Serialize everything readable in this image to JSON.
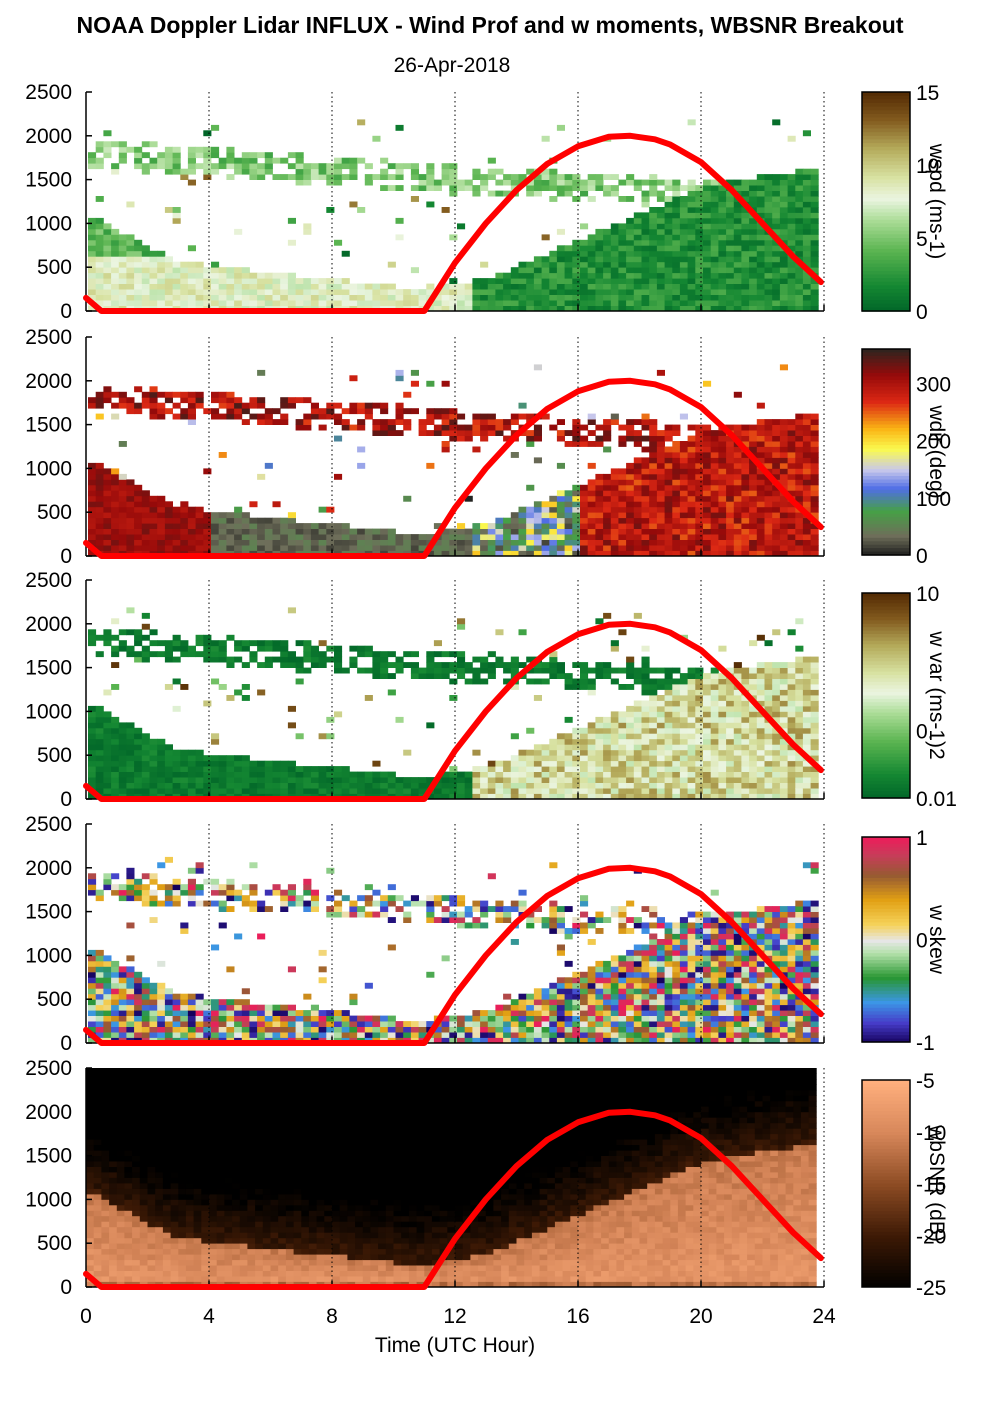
{
  "title": "NOAA Doppler Lidar INFLUX - Wind Prof and w moments, WBSNR Breakout",
  "subtitle": "26-Apr-2018",
  "x_axis": {
    "label": "Time (UTC Hour)",
    "ticks": [
      "0",
      "4",
      "8",
      "12",
      "16",
      "20",
      "24"
    ]
  },
  "colors": {
    "sun_curve": "#ff0000",
    "green_dark": "#006f2e",
    "red_dark": "#8b0d0d",
    "brown_dark": "#5a3510",
    "snr_light": "#f7a97a",
    "snr_dark": "#000000"
  },
  "chart_data": [
    {
      "type": "heatmap",
      "name": "wspd",
      "colorbar_label": "wspd (ms-1)",
      "colorbar_ticks": [
        "15",
        "10",
        "5",
        "0"
      ],
      "clim": [
        0,
        15
      ],
      "xlim": [
        0,
        24
      ],
      "ylim": [
        0,
        2500
      ],
      "y_ticks": [
        "2500",
        "2000",
        "1500",
        "1000",
        "500",
        "0"
      ],
      "grid_x": [
        4,
        8,
        12,
        16,
        20,
        24
      ]
    },
    {
      "type": "heatmap",
      "name": "wdir",
      "colorbar_label": "wdir (deg)",
      "colorbar_ticks": [
        "300",
        "200",
        "100",
        "0"
      ],
      "clim": [
        0,
        360
      ],
      "xlim": [
        0,
        24
      ],
      "ylim": [
        0,
        2500
      ],
      "y_ticks": [
        "2500",
        "2000",
        "1500",
        "1000",
        "500",
        "0"
      ],
      "grid_x": [
        4,
        8,
        12,
        16,
        20,
        24
      ]
    },
    {
      "type": "heatmap",
      "name": "w var",
      "colorbar_label": "w var (ms-1)2",
      "colorbar_ticks": [
        "10",
        "0.",
        "0.01"
      ],
      "clim": [
        0.01,
        10
      ],
      "xlim": [
        0,
        24
      ],
      "ylim": [
        0,
        2500
      ],
      "y_ticks": [
        "2500",
        "2000",
        "1500",
        "1000",
        "500",
        "0"
      ],
      "grid_x": [
        4,
        8,
        12,
        16,
        20,
        24
      ]
    },
    {
      "type": "heatmap",
      "name": "w skew",
      "colorbar_label": "w skew",
      "colorbar_ticks": [
        "1",
        "0",
        "-1"
      ],
      "clim": [
        -1,
        1
      ],
      "xlim": [
        0,
        24
      ],
      "ylim": [
        0,
        2500
      ],
      "y_ticks": [
        "2500",
        "2000",
        "1500",
        "1000",
        "500",
        "0"
      ],
      "grid_x": [
        4,
        8,
        12,
        16,
        20,
        24
      ]
    },
    {
      "type": "heatmap",
      "name": "wbSNR",
      "colorbar_label": "wbSNR (dB)",
      "colorbar_ticks": [
        "-5",
        "-10",
        "-15",
        "-20",
        "-25"
      ],
      "clim": [
        -25,
        -5
      ],
      "xlim": [
        0,
        24
      ],
      "ylim": [
        0,
        2500
      ],
      "y_ticks": [
        "2500",
        "2000",
        "1500",
        "1000",
        "500",
        "0"
      ],
      "grid_x": [
        4,
        8,
        12,
        16,
        20,
        24
      ]
    }
  ],
  "sun_curve": {
    "x": [
      0,
      0.5,
      11,
      12,
      13,
      14,
      15,
      16,
      17,
      17.7,
      18.5,
      19,
      20,
      21,
      22,
      23,
      23.9
    ],
    "y": [
      150,
      0,
      0,
      550,
      1000,
      1380,
      1680,
      1880,
      1990,
      2000,
      1960,
      1900,
      1700,
      1380,
      1000,
      620,
      330
    ]
  }
}
